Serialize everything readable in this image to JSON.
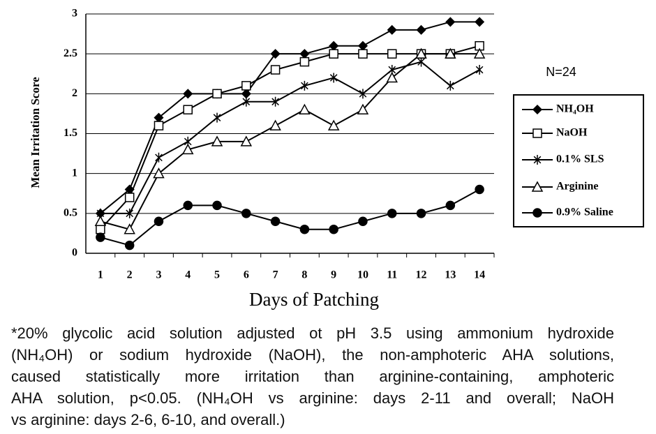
{
  "chart_data": {
    "type": "line",
    "x_label": "Days of Patching",
    "y_label": "Mean Irritation Score",
    "annotation": "N=24",
    "categories": [
      "1",
      "2",
      "3",
      "4",
      "5",
      "6",
      "7",
      "8",
      "9",
      "10",
      "11",
      "12",
      "13",
      "14"
    ],
    "ylim": [
      0,
      3
    ],
    "yticks": [
      0,
      0.5,
      1,
      1.5,
      2,
      2.5,
      3
    ],
    "grid": true,
    "series": [
      {
        "name": "NH₄OH",
        "color": "#000000",
        "marker": "diamond",
        "values": [
          0.5,
          0.8,
          1.7,
          2.0,
          2.0,
          2.0,
          2.5,
          2.5,
          2.6,
          2.6,
          2.8,
          2.8,
          2.9,
          2.9
        ]
      },
      {
        "name": "NaOH",
        "color": "#000000",
        "marker": "square",
        "values": [
          0.3,
          0.7,
          1.6,
          1.8,
          2.0,
          2.1,
          2.3,
          2.4,
          2.5,
          2.5,
          2.5,
          2.5,
          2.5,
          2.6
        ]
      },
      {
        "name": "0.1% SLS",
        "color": "#000000",
        "marker": "star",
        "values": [
          0.5,
          0.5,
          1.2,
          1.4,
          1.7,
          1.9,
          1.9,
          2.1,
          2.2,
          2.0,
          2.3,
          2.4,
          2.1,
          2.3
        ]
      },
      {
        "name": "Arginine",
        "color": "#000000",
        "marker": "triangle",
        "values": [
          0.4,
          0.3,
          1.0,
          1.3,
          1.4,
          1.4,
          1.6,
          1.8,
          1.6,
          1.8,
          2.2,
          2.5,
          2.5,
          2.5
        ]
      },
      {
        "name": "0.9% Saline",
        "color": "#000000",
        "marker": "circle",
        "values": [
          0.2,
          0.1,
          0.4,
          0.6,
          0.6,
          0.5,
          0.4,
          0.3,
          0.3,
          0.4,
          0.5,
          0.5,
          0.6,
          0.8
        ]
      }
    ]
  },
  "footnote": [
    "*20% glycolic acid solution adjusted ot pH 3.5 using ammonium hydroxide",
    "(NH₄OH) or sodium hydroxide (NaOH), the non-amphoteric AHA solutions,",
    "caused statistically more irritation than arginine-containing, amphoteric",
    "AHA solution, p<0.05. (NH₄OH vs arginine: days 2-11 and overall; NaOH",
    "vs arginine: days 2-6, 6-10, and overall.)"
  ]
}
